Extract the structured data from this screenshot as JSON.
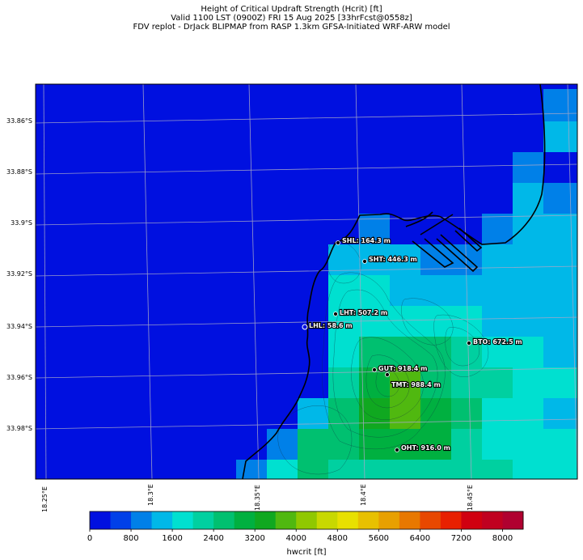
{
  "title": {
    "line1": "Height of Critical Updraft Strength (Hcrit) [ft]",
    "line2": "Valid 1100 LST (0900Z) FRI 15 Aug 2025 [33hrFcst@0558z]",
    "line3": "FDV replot - DrJack BLIPMAP from RASP 1.3km GFSA-Initiated WRF-ARW model"
  },
  "axes": {
    "lat_ticks": [
      "33.86°S",
      "33.88°S",
      "33.9°S",
      "33.92°S",
      "33.94°S",
      "33.96°S",
      "33.98°S"
    ],
    "lon_ticks": [
      "18.25°E",
      "18.3°E",
      "18.35°E",
      "18.4°E",
      "18.45°E"
    ]
  },
  "stations": [
    {
      "label": "SHL: 164.3 m"
    },
    {
      "label": "SHT: 446.3 m"
    },
    {
      "label": "LHT: 507.2 m"
    },
    {
      "label": "LHL: 58.6 m"
    },
    {
      "label": "BTO: 672.5 m"
    },
    {
      "label": "GUT: 918.4 m"
    },
    {
      "label": "TMT: 988.4 m"
    },
    {
      "label": "OHT: 916.0 m"
    }
  ],
  "colorbar": {
    "title": "hwcrit [ft]",
    "tick_labels": [
      "0",
      "800",
      "1600",
      "2400",
      "3200",
      "4000",
      "4800",
      "5600",
      "6400",
      "7200",
      "8000"
    ],
    "min": 0,
    "max": 8400,
    "step": 400,
    "colors": [
      "#0010e0",
      "#0040e8",
      "#0080e8",
      "#00b8e8",
      "#00e0d0",
      "#00d0a0",
      "#00c070",
      "#00b040",
      "#10a820",
      "#50b810",
      "#90c800",
      "#c8d800",
      "#e8e000",
      "#e8c000",
      "#e8a000",
      "#e87800",
      "#e84800",
      "#e82000",
      "#d00010",
      "#c00020",
      "#b00030"
    ]
  },
  "colors": {
    "land_background": "#0010e0",
    "coastline": "#000000",
    "grid": "#a8a8c8"
  }
}
